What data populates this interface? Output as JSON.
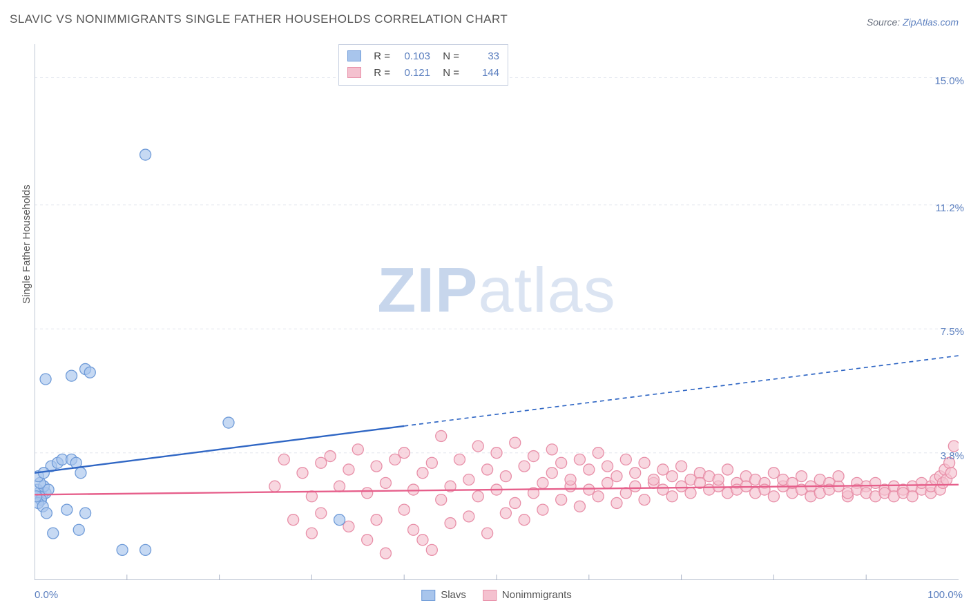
{
  "title": "SLAVIC VS NONIMMIGRANTS SINGLE FATHER HOUSEHOLDS CORRELATION CHART",
  "source_prefix": "Source: ",
  "source_link": "ZipAtlas.com",
  "ylabel": "Single Father Households",
  "watermark_bold": "ZIP",
  "watermark_light": "atlas",
  "chart": {
    "type": "scatter",
    "background": "#ffffff",
    "grid_color": "#e2e6ee",
    "grid_dash": "4,4",
    "axis_color": "#a9b3c6",
    "xlim": [
      0,
      100
    ],
    "ylim": [
      0,
      16
    ],
    "x_minor_ticks": [
      10,
      20,
      30,
      40,
      50,
      60,
      70,
      80,
      90
    ],
    "y_gridlines": [
      3.8,
      7.5,
      11.2,
      15.0
    ],
    "y_right_labels": [
      "3.8%",
      "7.5%",
      "11.2%",
      "15.0%"
    ],
    "x_left_label": "0.0%",
    "x_right_label": "100.0%",
    "axis_label_color": "#5b7fbf",
    "marker_radius": 8,
    "marker_stroke_width": 1.3,
    "line_width": 2.4,
    "series": [
      {
        "name": "Slavs",
        "color_fill": "#a8c5ec",
        "color_stroke": "#6f9bd8",
        "line_color": "#2f66c4",
        "trend": {
          "x0": 0,
          "y0": 3.2,
          "x1_solid": 40,
          "x1": 100,
          "y1": 6.7
        },
        "R": "0.103",
        "N": "33",
        "points": [
          [
            0.5,
            2.6
          ],
          [
            0.8,
            2.5
          ],
          [
            0.3,
            2.7
          ],
          [
            1.2,
            2.6
          ],
          [
            0.7,
            2.4
          ],
          [
            1.0,
            2.8
          ],
          [
            0.4,
            2.3
          ],
          [
            1.5,
            2.7
          ],
          [
            0.6,
            2.9
          ],
          [
            0.9,
            2.2
          ],
          [
            0.2,
            2.5
          ],
          [
            1.8,
            3.4
          ],
          [
            2.5,
            3.5
          ],
          [
            3.0,
            3.6
          ],
          [
            4.0,
            3.6
          ],
          [
            4.5,
            3.5
          ],
          [
            5.0,
            3.2
          ],
          [
            3.5,
            2.1
          ],
          [
            5.5,
            2.0
          ],
          [
            2.0,
            1.4
          ],
          [
            4.8,
            1.5
          ],
          [
            1.3,
            2.0
          ],
          [
            0.4,
            3.1
          ],
          [
            1.0,
            3.2
          ],
          [
            21.0,
            4.7
          ],
          [
            33.0,
            1.8
          ],
          [
            4.0,
            6.1
          ],
          [
            5.5,
            6.3
          ],
          [
            6.0,
            6.2
          ],
          [
            1.2,
            6.0
          ],
          [
            9.5,
            0.9
          ],
          [
            12.0,
            0.9
          ],
          [
            12.0,
            12.7
          ]
        ]
      },
      {
        "name": "Nonimmigrants",
        "color_fill": "#f4c1cf",
        "color_stroke": "#e88fa8",
        "line_color": "#e65f8b",
        "trend": {
          "x0": 0,
          "y0": 2.55,
          "x1_solid": 100,
          "x1": 100,
          "y1": 2.85
        },
        "R": "0.121",
        "N": "144",
        "points": [
          [
            26,
            2.8
          ],
          [
            27,
            3.6
          ],
          [
            28,
            1.8
          ],
          [
            29,
            3.2
          ],
          [
            30,
            1.4
          ],
          [
            30,
            2.5
          ],
          [
            31,
            3.5
          ],
          [
            31,
            2.0
          ],
          [
            32,
            3.7
          ],
          [
            33,
            2.8
          ],
          [
            34,
            1.6
          ],
          [
            34,
            3.3
          ],
          [
            35,
            3.9
          ],
          [
            36,
            1.2
          ],
          [
            36,
            2.6
          ],
          [
            37,
            3.4
          ],
          [
            37,
            1.8
          ],
          [
            38,
            2.9
          ],
          [
            38,
            0.8
          ],
          [
            39,
            3.6
          ],
          [
            40,
            2.1
          ],
          [
            40,
            3.8
          ],
          [
            41,
            1.5
          ],
          [
            41,
            2.7
          ],
          [
            42,
            3.2
          ],
          [
            42,
            1.2
          ],
          [
            43,
            3.5
          ],
          [
            43,
            0.9
          ],
          [
            44,
            2.4
          ],
          [
            44,
            4.3
          ],
          [
            45,
            2.8
          ],
          [
            45,
            1.7
          ],
          [
            46,
            3.6
          ],
          [
            47,
            3.0
          ],
          [
            47,
            1.9
          ],
          [
            48,
            2.5
          ],
          [
            48,
            4.0
          ],
          [
            49,
            3.3
          ],
          [
            49,
            1.4
          ],
          [
            50,
            2.7
          ],
          [
            50,
            3.8
          ],
          [
            51,
            2.0
          ],
          [
            51,
            3.1
          ],
          [
            52,
            4.1
          ],
          [
            52,
            2.3
          ],
          [
            53,
            3.4
          ],
          [
            53,
            1.8
          ],
          [
            54,
            2.6
          ],
          [
            54,
            3.7
          ],
          [
            55,
            2.9
          ],
          [
            55,
            2.1
          ],
          [
            56,
            3.2
          ],
          [
            56,
            3.9
          ],
          [
            57,
            2.4
          ],
          [
            57,
            3.5
          ],
          [
            58,
            2.8
          ],
          [
            58,
            3.0
          ],
          [
            59,
            3.6
          ],
          [
            59,
            2.2
          ],
          [
            60,
            2.7
          ],
          [
            60,
            3.3
          ],
          [
            61,
            3.8
          ],
          [
            61,
            2.5
          ],
          [
            62,
            2.9
          ],
          [
            62,
            3.4
          ],
          [
            63,
            2.3
          ],
          [
            63,
            3.1
          ],
          [
            64,
            3.6
          ],
          [
            64,
            2.6
          ],
          [
            65,
            2.8
          ],
          [
            65,
            3.2
          ],
          [
            66,
            3.5
          ],
          [
            66,
            2.4
          ],
          [
            67,
            2.9
          ],
          [
            67,
            3.0
          ],
          [
            68,
            3.3
          ],
          [
            68,
            2.7
          ],
          [
            69,
            3.1
          ],
          [
            69,
            2.5
          ],
          [
            70,
            2.8
          ],
          [
            70,
            3.4
          ],
          [
            71,
            3.0
          ],
          [
            71,
            2.6
          ],
          [
            72,
            3.2
          ],
          [
            72,
            2.9
          ],
          [
            73,
            2.7
          ],
          [
            73,
            3.1
          ],
          [
            74,
            2.8
          ],
          [
            74,
            3.0
          ],
          [
            75,
            2.6
          ],
          [
            75,
            3.3
          ],
          [
            76,
            2.9
          ],
          [
            76,
            2.7
          ],
          [
            77,
            3.1
          ],
          [
            77,
            2.8
          ],
          [
            78,
            2.6
          ],
          [
            78,
            3.0
          ],
          [
            79,
            2.9
          ],
          [
            79,
            2.7
          ],
          [
            80,
            3.2
          ],
          [
            80,
            2.5
          ],
          [
            81,
            2.8
          ],
          [
            81,
            3.0
          ],
          [
            82,
            2.6
          ],
          [
            82,
            2.9
          ],
          [
            83,
            3.1
          ],
          [
            83,
            2.7
          ],
          [
            84,
            2.8
          ],
          [
            84,
            2.5
          ],
          [
            85,
            3.0
          ],
          [
            85,
            2.6
          ],
          [
            86,
            2.9
          ],
          [
            86,
            2.7
          ],
          [
            87,
            2.8
          ],
          [
            87,
            3.1
          ],
          [
            88,
            2.5
          ],
          [
            88,
            2.6
          ],
          [
            89,
            2.9
          ],
          [
            89,
            2.7
          ],
          [
            90,
            2.8
          ],
          [
            90,
            2.6
          ],
          [
            91,
            2.5
          ],
          [
            91,
            2.9
          ],
          [
            92,
            2.7
          ],
          [
            92,
            2.6
          ],
          [
            93,
            2.8
          ],
          [
            93,
            2.5
          ],
          [
            94,
            2.7
          ],
          [
            94,
            2.6
          ],
          [
            95,
            2.8
          ],
          [
            95,
            2.5
          ],
          [
            96,
            2.7
          ],
          [
            96,
            2.9
          ],
          [
            97,
            2.6
          ],
          [
            97,
            2.8
          ],
          [
            97.5,
            3.0
          ],
          [
            98,
            2.7
          ],
          [
            98,
            3.1
          ],
          [
            98.3,
            2.9
          ],
          [
            98.5,
            3.3
          ],
          [
            98.7,
            3.0
          ],
          [
            99,
            3.5
          ],
          [
            99.2,
            3.2
          ],
          [
            99.5,
            4.0
          ]
        ]
      }
    ]
  },
  "legend_top": {
    "labels": {
      "R": "R =",
      "N": "N ="
    }
  },
  "legend_bottom_names": [
    "Slavs",
    "Nonimmigrants"
  ]
}
